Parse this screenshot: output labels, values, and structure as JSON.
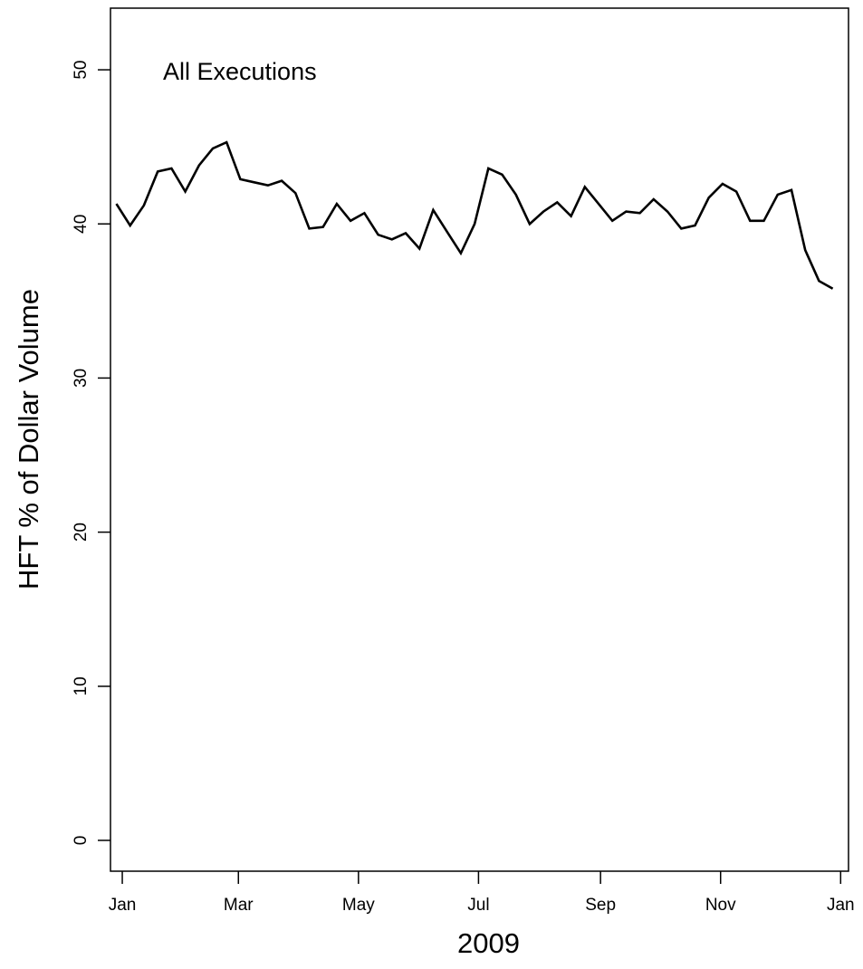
{
  "chart_data": {
    "type": "line",
    "title": "",
    "annotation": "All Executions",
    "xlabel": "2009",
    "ylabel": "HFT % of Dollar Volume",
    "ylim": [
      -2,
      54
    ],
    "yticks": [
      0,
      10,
      20,
      30,
      40,
      50
    ],
    "xlim": [
      "2008-12-26",
      "2010-01-05"
    ],
    "xticks": [
      {
        "label": "Jan",
        "date": "2009-01-01"
      },
      {
        "label": "Mar",
        "date": "2009-03-01"
      },
      {
        "label": "May",
        "date": "2009-05-01"
      },
      {
        "label": "Jul",
        "date": "2009-07-01"
      },
      {
        "label": "Sep",
        "date": "2009-09-01"
      },
      {
        "label": "Nov",
        "date": "2009-11-01"
      },
      {
        "label": "Jan",
        "date": "2010-01-01"
      }
    ],
    "grid": false,
    "legend": "none",
    "line_color": "#000000",
    "series": [
      {
        "x": [
          "2008-12-29",
          "2009-01-05",
          "2009-01-12",
          "2009-01-19",
          "2009-01-26",
          "2009-02-02",
          "2009-02-09",
          "2009-02-16",
          "2009-02-23",
          "2009-03-02",
          "2009-03-09",
          "2009-03-16",
          "2009-03-23",
          "2009-03-30",
          "2009-04-06",
          "2009-04-13",
          "2009-04-20",
          "2009-04-27",
          "2009-05-04",
          "2009-05-11",
          "2009-05-18",
          "2009-05-25",
          "2009-06-01",
          "2009-06-08",
          "2009-06-15",
          "2009-06-22",
          "2009-06-29",
          "2009-07-06",
          "2009-07-13",
          "2009-07-20",
          "2009-07-27",
          "2009-08-03",
          "2009-08-10",
          "2009-08-17",
          "2009-08-24",
          "2009-08-31",
          "2009-09-07",
          "2009-09-14",
          "2009-09-21",
          "2009-09-28",
          "2009-10-05",
          "2009-10-12",
          "2009-10-19",
          "2009-10-26",
          "2009-11-02",
          "2009-11-09",
          "2009-11-16",
          "2009-11-23",
          "2009-11-30",
          "2009-12-07",
          "2009-12-14",
          "2009-12-21",
          "2009-12-28"
        ],
        "values": [
          41.3,
          39.9,
          41.2,
          43.4,
          43.6,
          42.1,
          43.8,
          44.9,
          45.3,
          42.9,
          42.7,
          42.5,
          42.8,
          42.0,
          39.7,
          39.8,
          41.3,
          40.2,
          40.7,
          39.3,
          39.0,
          39.4,
          38.4,
          40.9,
          39.5,
          38.1,
          40.0,
          43.6,
          43.2,
          41.9,
          40.0,
          40.8,
          41.4,
          40.5,
          42.4,
          41.3,
          40.2,
          40.8,
          40.7,
          41.6,
          40.8,
          39.7,
          39.9,
          41.7,
          42.6,
          42.1,
          40.2,
          40.2,
          41.9,
          42.2,
          38.3,
          36.3,
          35.8
        ]
      }
    ]
  }
}
